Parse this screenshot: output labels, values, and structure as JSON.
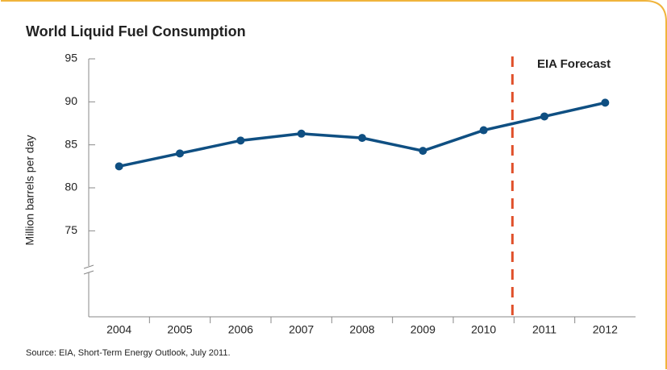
{
  "chart_data": {
    "type": "line",
    "title": "World Liquid Fuel Consumption",
    "y_label": "Million barrels per day",
    "annotation": "EIA Forecast",
    "source": "Source: EIA, Short-Term Energy Outlook, July 2011.",
    "categories": [
      "2004",
      "2005",
      "2006",
      "2007",
      "2008",
      "2009",
      "2010",
      "2011",
      "2012"
    ],
    "series": [
      {
        "name": "World Liquid Fuel Consumption",
        "color": "#0f4f82",
        "values": [
          82.5,
          84,
          85.5,
          86.3,
          85.8,
          84.3,
          86.7,
          88.3,
          89.9
        ]
      }
    ],
    "ylim": [
      65,
      95
    ],
    "yticks": [
      75,
      80,
      85,
      90,
      95
    ],
    "forecast_color": "#e0502a"
  }
}
